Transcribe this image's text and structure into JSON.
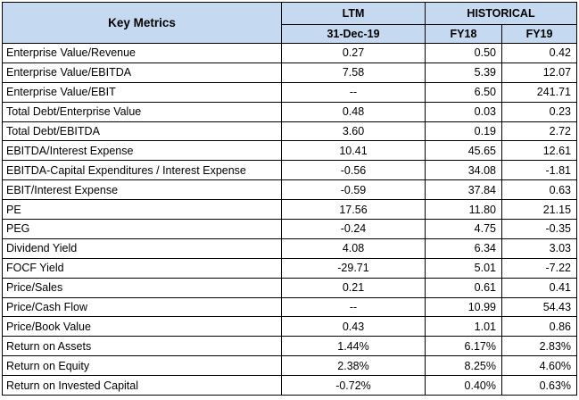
{
  "table": {
    "header": {
      "key_metrics": "Key Metrics",
      "ltm": "LTM",
      "historical": "HISTORICAL",
      "ltm_date": "31-Dec-19",
      "fy18": "FY18",
      "fy19": "FY19"
    },
    "rows": [
      {
        "label": "Enterprise Value/Revenue",
        "ltm": "0.27",
        "fy18": "0.50",
        "fy19": "0.42"
      },
      {
        "label": "Enterprise Value/EBITDA",
        "ltm": "7.58",
        "fy18": "5.39",
        "fy19": "12.07"
      },
      {
        "label": "Enterprise Value/EBIT",
        "ltm": "--",
        "fy18": "6.50",
        "fy19": "241.71"
      },
      {
        "label": "Total Debt/Enterprise Value",
        "ltm": "0.48",
        "fy18": "0.03",
        "fy19": "0.23"
      },
      {
        "label": "Total Debt/EBITDA",
        "ltm": "3.60",
        "fy18": "0.19",
        "fy19": "2.72"
      },
      {
        "label": "EBITDA/Interest Expense",
        "ltm": "10.41",
        "fy18": "45.65",
        "fy19": "12.61"
      },
      {
        "label": "EBITDA-Capital Expenditures / Interest Expense",
        "ltm": "-0.56",
        "fy18": "34.08",
        "fy19": "-1.81"
      },
      {
        "label": "EBIT/Interest Expense",
        "ltm": "-0.59",
        "fy18": "37.84",
        "fy19": "0.63"
      },
      {
        "label": "PE",
        "ltm": "17.56",
        "fy18": "11.80",
        "fy19": "21.15"
      },
      {
        "label": "PEG",
        "ltm": "-0.24",
        "fy18": "4.75",
        "fy19": "-0.35"
      },
      {
        "label": "Dividend Yield",
        "ltm": "4.08",
        "fy18": "6.34",
        "fy19": "3.03"
      },
      {
        "label": "FOCF Yield",
        "ltm": "-29.71",
        "fy18": "5.01",
        "fy19": "-7.22"
      },
      {
        "label": "Price/Sales",
        "ltm": "0.21",
        "fy18": "0.61",
        "fy19": "0.41"
      },
      {
        "label": "Price/Cash Flow",
        "ltm": "--",
        "fy18": "10.99",
        "fy19": "54.43"
      },
      {
        "label": "Price/Book Value",
        "ltm": "0.43",
        "fy18": "1.01",
        "fy19": "0.86"
      },
      {
        "label": "Return on Assets",
        "ltm": "1.44%",
        "fy18": "6.17%",
        "fy19": "2.83%"
      },
      {
        "label": "Return on Equity",
        "ltm": "2.38%",
        "fy18": "8.25%",
        "fy19": "4.60%"
      },
      {
        "label": "Return on Invested Capital",
        "ltm": "-0.72%",
        "fy18": "0.40%",
        "fy19": "0.63%"
      }
    ],
    "colors": {
      "header_fill": "#c5d9f1",
      "border": "#000000"
    }
  }
}
